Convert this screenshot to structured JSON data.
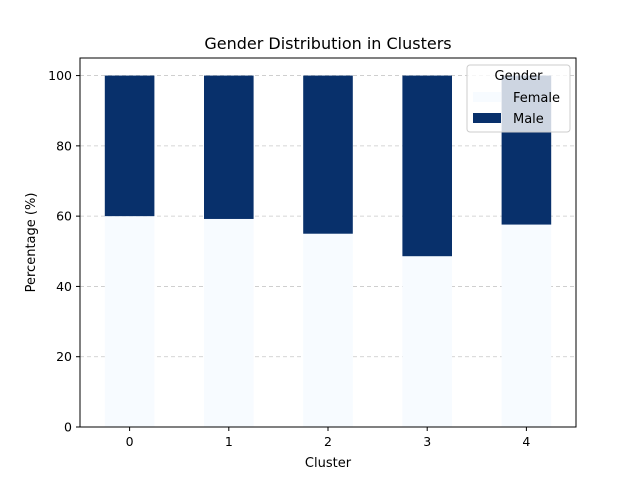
{
  "chart_data": {
    "type": "bar",
    "stacked": true,
    "title": "Gender Distribution in Clusters",
    "xlabel": "Cluster",
    "ylabel": "Percentage (%)",
    "categories": [
      "0",
      "1",
      "2",
      "3",
      "4"
    ],
    "ylim": [
      0,
      105
    ],
    "yticks": [
      0,
      20,
      40,
      60,
      80,
      100
    ],
    "grid": "y-dashed",
    "legend": {
      "title": "Gender",
      "placement": "top-right"
    },
    "series": [
      {
        "name": "Female",
        "color": "#f7fbff",
        "values": [
          60.0,
          59.2,
          55.0,
          48.6,
          57.6
        ]
      },
      {
        "name": "Male",
        "color": "#08306b",
        "values": [
          40.0,
          40.8,
          45.0,
          51.4,
          42.4
        ]
      }
    ]
  }
}
